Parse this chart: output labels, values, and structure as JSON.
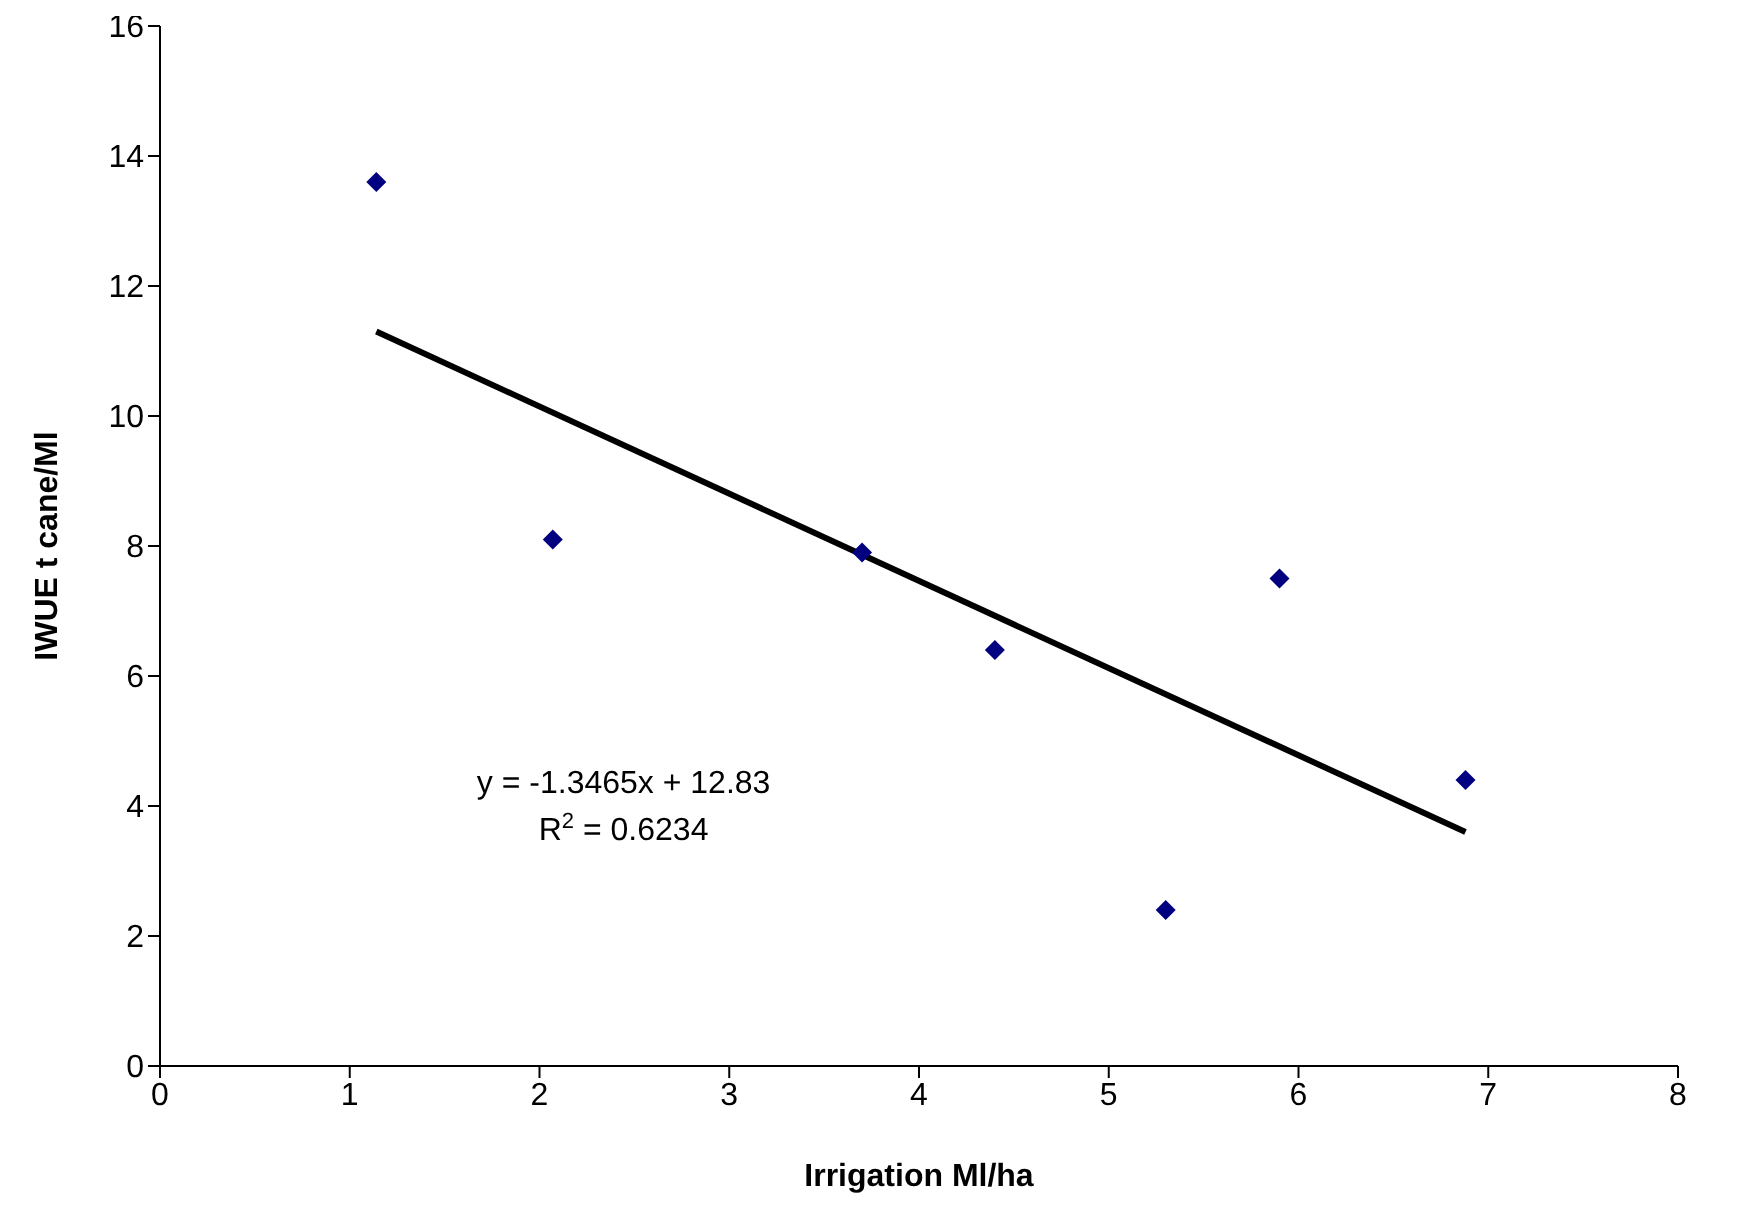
{
  "chart_data": {
    "type": "scatter",
    "xlabel": "Irrigation Ml/ha",
    "ylabel": "IWUE t cane/Ml",
    "xlim": [
      0,
      8
    ],
    "xticks": [
      0,
      1,
      2,
      3,
      4,
      5,
      6,
      7,
      8
    ],
    "ylim": [
      0,
      16
    ],
    "yticks": [
      0,
      2,
      4,
      6,
      8,
      10,
      12,
      14,
      16
    ],
    "series": [
      {
        "marker": "diamond",
        "color": "#000080",
        "x": [
          1.14,
          2.07,
          3.7,
          4.4,
          5.3,
          5.9,
          6.88
        ],
        "values": [
          13.6,
          8.1,
          7.9,
          6.4,
          2.4,
          7.5,
          4.4
        ]
      },
      {
        "type": "line",
        "color": "#000000",
        "x": [
          1.14,
          6.88
        ],
        "values": [
          11.3,
          3.6
        ],
        "marker": "none"
      }
    ],
    "annotations": [
      "y = -1.3465x + 12.83",
      "R$^{2}$ = 0.6234"
    ]
  }
}
